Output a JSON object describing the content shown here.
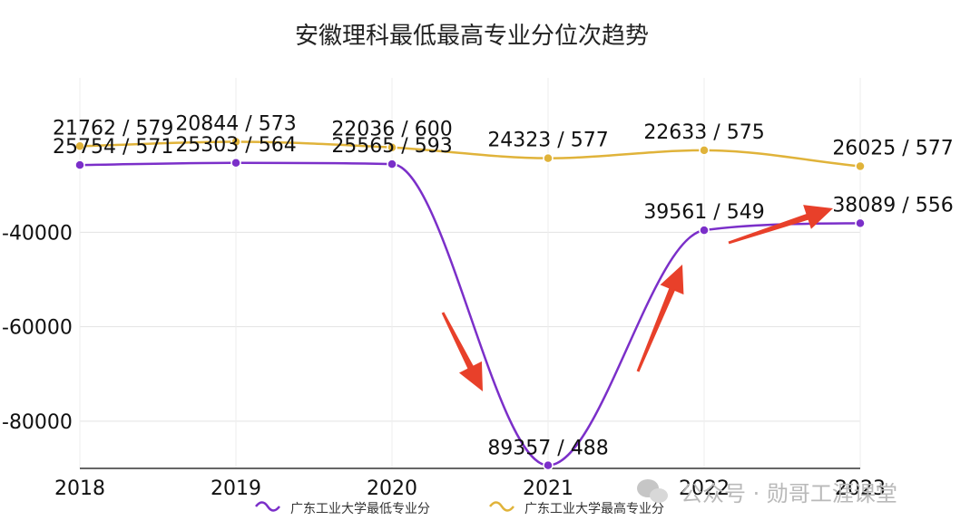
{
  "chart_data": {
    "type": "line",
    "title": "安徽理科最低最高专业分位次趋势",
    "categories": [
      "2018",
      "2019",
      "2020",
      "2021",
      "2022",
      "2023"
    ],
    "y_ticks": [
      "-40000",
      "-60000",
      "-80000"
    ],
    "ylim": [
      -90000,
      -10000
    ],
    "grid": true,
    "legend_position": "bottom",
    "series": [
      {
        "name": "广东工业大学最低专业分",
        "color": "#7b2fc9",
        "values": [
          -25754,
          -25303,
          -25565,
          -89357,
          -39561,
          -38089
        ],
        "labels": [
          "25754 / 571",
          "25303 / 564",
          "25565 / 593",
          "89357 / 488",
          "39561 / 549",
          "38089 / 556"
        ]
      },
      {
        "name": "广东工业大学最高专业分",
        "color": "#e0b33a",
        "values": [
          -21762,
          -20844,
          -22036,
          -24323,
          -22633,
          -26025
        ],
        "labels": [
          "21762 / 579",
          "20844 / 573",
          "22036 / 600",
          "24323 / 577",
          "22633 / 575",
          "26025 / 577"
        ]
      }
    ],
    "annotations": "three red arrows: down toward 2021, up toward 2022, up toward 2023",
    "arrow_color": "#e8402a"
  },
  "watermark": "公众号 · 勋哥工涯课堂",
  "watermark_icon": "wechat-icon"
}
